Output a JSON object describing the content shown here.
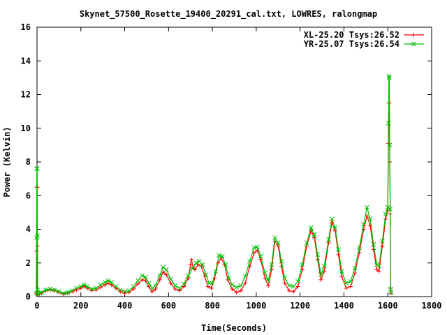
{
  "chart_data": {
    "type": "line",
    "title": "Skynet_57500_Rosette_19400_20291_cal.txt, LOWRES, ralongmap",
    "xlabel": "Time(Seconds)",
    "ylabel": "Power (Kelvin)",
    "xlim": [
      0,
      1800
    ],
    "ylim": [
      0,
      16
    ],
    "xticks": [
      0,
      200,
      400,
      600,
      800,
      1000,
      1200,
      1400,
      1600,
      1800
    ],
    "yticks": [
      0,
      2,
      4,
      6,
      8,
      10,
      12,
      14,
      16
    ],
    "grid": false,
    "legend_position": "top-right",
    "series": [
      {
        "name": "XL-25.20 Tsys:26.52",
        "color": "#ff0000",
        "marker": "plus",
        "points": [
          [
            -3,
            0.2
          ],
          [
            -2,
            2.7
          ],
          [
            -1,
            6.5
          ],
          [
            0,
            6.5
          ],
          [
            1,
            6.5
          ],
          [
            2,
            3.0
          ],
          [
            3,
            0.3
          ],
          [
            4,
            0.1
          ],
          [
            20,
            0.2
          ],
          [
            40,
            0.35
          ],
          [
            60,
            0.4
          ],
          [
            80,
            0.35
          ],
          [
            100,
            0.25
          ],
          [
            120,
            0.15
          ],
          [
            140,
            0.2
          ],
          [
            160,
            0.3
          ],
          [
            180,
            0.4
          ],
          [
            200,
            0.5
          ],
          [
            215,
            0.6
          ],
          [
            230,
            0.5
          ],
          [
            250,
            0.35
          ],
          [
            270,
            0.4
          ],
          [
            290,
            0.55
          ],
          [
            310,
            0.7
          ],
          [
            325,
            0.8
          ],
          [
            340,
            0.7
          ],
          [
            360,
            0.5
          ],
          [
            380,
            0.3
          ],
          [
            400,
            0.2
          ],
          [
            420,
            0.25
          ],
          [
            440,
            0.45
          ],
          [
            460,
            0.75
          ],
          [
            480,
            1.0
          ],
          [
            495,
            0.95
          ],
          [
            510,
            0.6
          ],
          [
            525,
            0.3
          ],
          [
            540,
            0.45
          ],
          [
            560,
            1.0
          ],
          [
            575,
            1.45
          ],
          [
            590,
            1.3
          ],
          [
            610,
            0.8
          ],
          [
            630,
            0.45
          ],
          [
            650,
            0.35
          ],
          [
            670,
            0.6
          ],
          [
            690,
            1.1
          ],
          [
            700,
            1.9
          ],
          [
            705,
            2.2
          ],
          [
            712,
            1.7
          ],
          [
            720,
            1.6
          ],
          [
            735,
            1.9
          ],
          [
            750,
            1.8
          ],
          [
            765,
            1.2
          ],
          [
            780,
            0.6
          ],
          [
            795,
            0.5
          ],
          [
            810,
            1.1
          ],
          [
            825,
            2.0
          ],
          [
            840,
            2.3
          ],
          [
            855,
            1.9
          ],
          [
            870,
            1.0
          ],
          [
            890,
            0.45
          ],
          [
            910,
            0.25
          ],
          [
            930,
            0.35
          ],
          [
            950,
            0.8
          ],
          [
            970,
            1.8
          ],
          [
            990,
            2.6
          ],
          [
            1005,
            2.75
          ],
          [
            1020,
            2.2
          ],
          [
            1040,
            1.1
          ],
          [
            1055,
            0.65
          ],
          [
            1070,
            1.6
          ],
          [
            1085,
            3.3
          ],
          [
            1100,
            3.0
          ],
          [
            1115,
            1.8
          ],
          [
            1130,
            0.8
          ],
          [
            1150,
            0.35
          ],
          [
            1170,
            0.3
          ],
          [
            1190,
            0.6
          ],
          [
            1210,
            1.6
          ],
          [
            1230,
            3.0
          ],
          [
            1250,
            3.9
          ],
          [
            1265,
            3.5
          ],
          [
            1280,
            2.2
          ],
          [
            1295,
            1.0
          ],
          [
            1310,
            1.5
          ],
          [
            1330,
            3.2
          ],
          [
            1345,
            4.4
          ],
          [
            1360,
            3.9
          ],
          [
            1375,
            2.5
          ],
          [
            1390,
            1.2
          ],
          [
            1410,
            0.5
          ],
          [
            1430,
            0.6
          ],
          [
            1450,
            1.4
          ],
          [
            1470,
            2.6
          ],
          [
            1490,
            4.0
          ],
          [
            1505,
            4.8
          ],
          [
            1520,
            4.2
          ],
          [
            1535,
            2.8
          ],
          [
            1550,
            1.6
          ],
          [
            1560,
            1.5
          ],
          [
            1575,
            3.0
          ],
          [
            1590,
            4.6
          ],
          [
            1600,
            5.1
          ],
          [
            1603,
            9.1
          ],
          [
            1605,
            11.5
          ],
          [
            1607,
            11.5
          ],
          [
            1609,
            8.0
          ],
          [
            1611,
            4.9
          ],
          [
            1613,
            0.5
          ],
          [
            1615,
            0.2
          ]
        ]
      },
      {
        "name": "YR-25.07 Tsys:26.54",
        "color": "#00c000",
        "marker": "x",
        "points": [
          [
            -3,
            0.2
          ],
          [
            -2,
            3.5
          ],
          [
            -1,
            7.6
          ],
          [
            0,
            7.6
          ],
          [
            1,
            7.6
          ],
          [
            2,
            3.6
          ],
          [
            3,
            0.4
          ],
          [
            4,
            0.15
          ],
          [
            20,
            0.25
          ],
          [
            40,
            0.4
          ],
          [
            60,
            0.45
          ],
          [
            80,
            0.4
          ],
          [
            100,
            0.3
          ],
          [
            120,
            0.2
          ],
          [
            140,
            0.25
          ],
          [
            160,
            0.35
          ],
          [
            180,
            0.5
          ],
          [
            200,
            0.6
          ],
          [
            215,
            0.7
          ],
          [
            230,
            0.6
          ],
          [
            250,
            0.45
          ],
          [
            270,
            0.5
          ],
          [
            290,
            0.7
          ],
          [
            310,
            0.85
          ],
          [
            325,
            0.95
          ],
          [
            340,
            0.85
          ],
          [
            360,
            0.6
          ],
          [
            380,
            0.4
          ],
          [
            400,
            0.3
          ],
          [
            420,
            0.35
          ],
          [
            440,
            0.6
          ],
          [
            460,
            0.95
          ],
          [
            480,
            1.25
          ],
          [
            495,
            1.15
          ],
          [
            510,
            0.8
          ],
          [
            525,
            0.5
          ],
          [
            540,
            0.65
          ],
          [
            560,
            1.25
          ],
          [
            575,
            1.75
          ],
          [
            590,
            1.6
          ],
          [
            610,
            1.05
          ],
          [
            630,
            0.65
          ],
          [
            650,
            0.5
          ],
          [
            670,
            0.75
          ],
          [
            690,
            1.25
          ],
          [
            710,
            1.7
          ],
          [
            725,
            2.0
          ],
          [
            740,
            2.1
          ],
          [
            755,
            1.9
          ],
          [
            770,
            1.3
          ],
          [
            785,
            0.8
          ],
          [
            800,
            0.8
          ],
          [
            815,
            1.5
          ],
          [
            830,
            2.45
          ],
          [
            845,
            2.4
          ],
          [
            860,
            1.9
          ],
          [
            875,
            1.1
          ],
          [
            890,
            0.7
          ],
          [
            910,
            0.55
          ],
          [
            930,
            0.65
          ],
          [
            950,
            1.2
          ],
          [
            970,
            2.1
          ],
          [
            990,
            2.9
          ],
          [
            1005,
            2.95
          ],
          [
            1020,
            2.4
          ],
          [
            1040,
            1.4
          ],
          [
            1055,
            0.95
          ],
          [
            1070,
            1.9
          ],
          [
            1085,
            3.5
          ],
          [
            1100,
            3.2
          ],
          [
            1115,
            2.1
          ],
          [
            1130,
            1.1
          ],
          [
            1150,
            0.65
          ],
          [
            1170,
            0.6
          ],
          [
            1190,
            0.9
          ],
          [
            1210,
            1.9
          ],
          [
            1230,
            3.2
          ],
          [
            1250,
            4.1
          ],
          [
            1265,
            3.7
          ],
          [
            1280,
            2.5
          ],
          [
            1295,
            1.3
          ],
          [
            1310,
            1.8
          ],
          [
            1330,
            3.4
          ],
          [
            1345,
            4.6
          ],
          [
            1360,
            4.1
          ],
          [
            1375,
            2.8
          ],
          [
            1390,
            1.5
          ],
          [
            1410,
            0.8
          ],
          [
            1430,
            0.9
          ],
          [
            1450,
            1.7
          ],
          [
            1470,
            2.9
          ],
          [
            1490,
            4.3
          ],
          [
            1505,
            5.3
          ],
          [
            1520,
            4.6
          ],
          [
            1535,
            3.1
          ],
          [
            1550,
            1.9
          ],
          [
            1560,
            1.8
          ],
          [
            1575,
            3.3
          ],
          [
            1590,
            4.9
          ],
          [
            1600,
            5.3
          ],
          [
            1603,
            10.3
          ],
          [
            1605,
            13.1
          ],
          [
            1607,
            13.0
          ],
          [
            1609,
            9.0
          ],
          [
            1611,
            5.2
          ],
          [
            1613,
            0.45
          ],
          [
            1615,
            0.25
          ]
        ]
      }
    ]
  }
}
